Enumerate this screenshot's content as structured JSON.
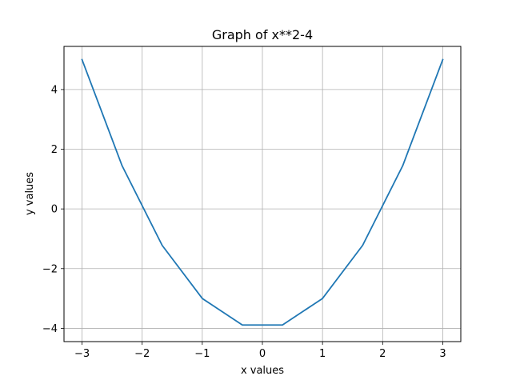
{
  "chart_data": {
    "type": "line",
    "title": "Graph of x**2-4",
    "xlabel": "x values",
    "ylabel": "y values",
    "xlim": [
      -3.3,
      3.3
    ],
    "ylim": [
      -4.4444,
      5.4444
    ],
    "grid": true,
    "x_ticks": [
      -3,
      -2,
      -1,
      0,
      1,
      2,
      3
    ],
    "y_ticks": [
      -4,
      -2,
      0,
      2,
      4
    ],
    "x_tick_labels": [
      "−3",
      "−2",
      "−1",
      "0",
      "1",
      "2",
      "3"
    ],
    "y_tick_labels": [
      "−4",
      "−2",
      "0",
      "2",
      "4"
    ],
    "series": [
      {
        "color": "#1f77b4",
        "x": [
          -3,
          -2.3333,
          -1.6667,
          -1,
          -0.3333,
          0.3333,
          1,
          1.6667,
          2.3333,
          3
        ],
        "y": [
          5,
          1.4444,
          -1.2222,
          -3,
          -3.8889,
          -3.8889,
          -3,
          -1.2222,
          1.4444,
          5
        ]
      }
    ]
  }
}
